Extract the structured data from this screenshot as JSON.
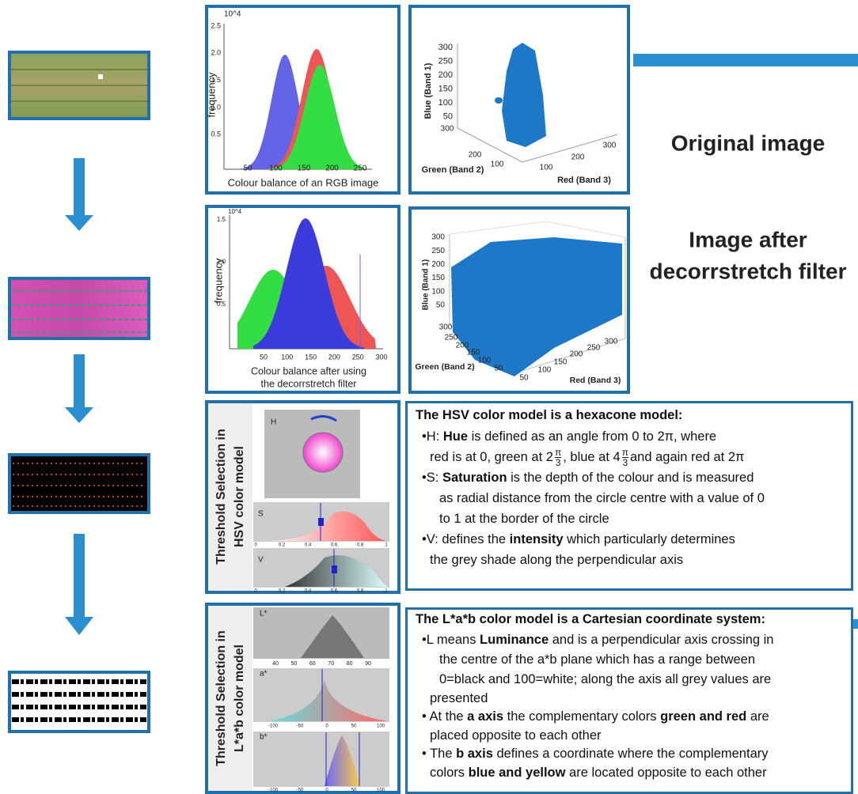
{
  "histogram_original": {
    "ylabel": "frequency",
    "exponent": "10^4",
    "yticks": [
      "2.5",
      "2.0",
      "1.5",
      "1.0",
      "0.5"
    ],
    "xticks": [
      "50",
      "100",
      "150",
      "200",
      "250"
    ],
    "caption": "Colour balance of an RGB image"
  },
  "scatter_original": {
    "zlabel": "Blue (Band 1)",
    "zticks": [
      "300",
      "250",
      "200",
      "150",
      "100",
      "50"
    ],
    "green_label": "Green (Band 2)",
    "green_ticks": [
      "300",
      "200",
      "100"
    ],
    "red_label": "Red  (Band 3)",
    "red_ticks": [
      "100",
      "200",
      "300"
    ]
  },
  "label_original": "Original image",
  "histogram_decorr": {
    "ylabel": "frequency",
    "exponent": "10^4",
    "yticks": [
      "1.5",
      "1.0",
      "0.5"
    ],
    "xticks": [
      "50",
      "100",
      "150",
      "200",
      "250",
      "300"
    ],
    "caption": [
      "Colour balance after using",
      "the decorrstretch filter"
    ]
  },
  "scatter_decorr": {
    "zlabel": "Blue (Band 1)",
    "zticks": [
      "300",
      "250",
      "200",
      "150",
      "100",
      "50"
    ],
    "green_label": "Green (Band 2)",
    "green_ticks": [
      "300",
      "250",
      "200",
      "150",
      "100",
      "50"
    ],
    "red_label": "Red (Band 3)",
    "red_ticks": [
      "50",
      "100",
      "150",
      "200",
      "250",
      "300"
    ]
  },
  "label_decorr": [
    "Image after",
    "decorrstretch filter"
  ],
  "hsv_panel": {
    "title": [
      "Threshold Selection in",
      "HSV color model"
    ],
    "h": "H",
    "s": "S",
    "v": "V",
    "ticks": [
      "0",
      "0.2",
      "0.4",
      "0.6",
      "0.8",
      "1"
    ]
  },
  "lab_panel": {
    "title": [
      "Threshold Selection in",
      "L*a*b color model"
    ],
    "l": "L*",
    "a": "a*",
    "b": "b*",
    "l_ticks": [
      "40",
      "50",
      "60",
      "70",
      "80",
      "90"
    ],
    "ab_ticks": [
      "-100",
      "-50",
      "0",
      "50",
      "100"
    ]
  },
  "box_hsv": {
    "title": "The HSV color model is a hexacone model:",
    "lines": [
      [
        "•H: ",
        {
          "bold": "Hue"
        },
        " is defined as an angle from 0 to 2π, where"
      ],
      [
        "red is at 0,  green at 2",
        {
          "num": "π",
          "den": "3"
        },
        ", blue at 4",
        {
          "num": "π",
          "den": "3"
        },
        "and again red at 2π"
      ],
      [
        "•S: ",
        {
          "bold": "Saturation"
        },
        " is the depth of the colour and is measured"
      ],
      [
        "as radial distance from the circle centre with a value of 0"
      ],
      [
        "to 1 at the border of the circle"
      ],
      [
        "•V: defines the ",
        {
          "bold": "intensity"
        },
        " which particularly determines"
      ],
      [
        "the grey shade along the perpendicular axis"
      ]
    ]
  },
  "box_lab": {
    "title": "The L*a*b color model is a Cartesian coordinate system:",
    "lines": [
      [
        "•L means ",
        {
          "bold": "Luminance"
        },
        " and is a perpendicular axis crossing in"
      ],
      [
        "the centre of the a*b plane which has a range between"
      ],
      [
        "0=black and 100=white; along the axis all grey values are"
      ],
      [
        "presented"
      ],
      [
        "• At the ",
        {
          "bold": "a axis"
        },
        " the complementary colors ",
        {
          "bold": "green and red"
        },
        " are"
      ],
      [
        "placed opposite to each other"
      ],
      [
        "• The ",
        {
          "bold": "b axis"
        },
        " defines a coordinate where the complementary"
      ],
      [
        "colors ",
        {
          "bold": "blue and yellow"
        },
        " are located opposite to each other"
      ]
    ]
  }
}
